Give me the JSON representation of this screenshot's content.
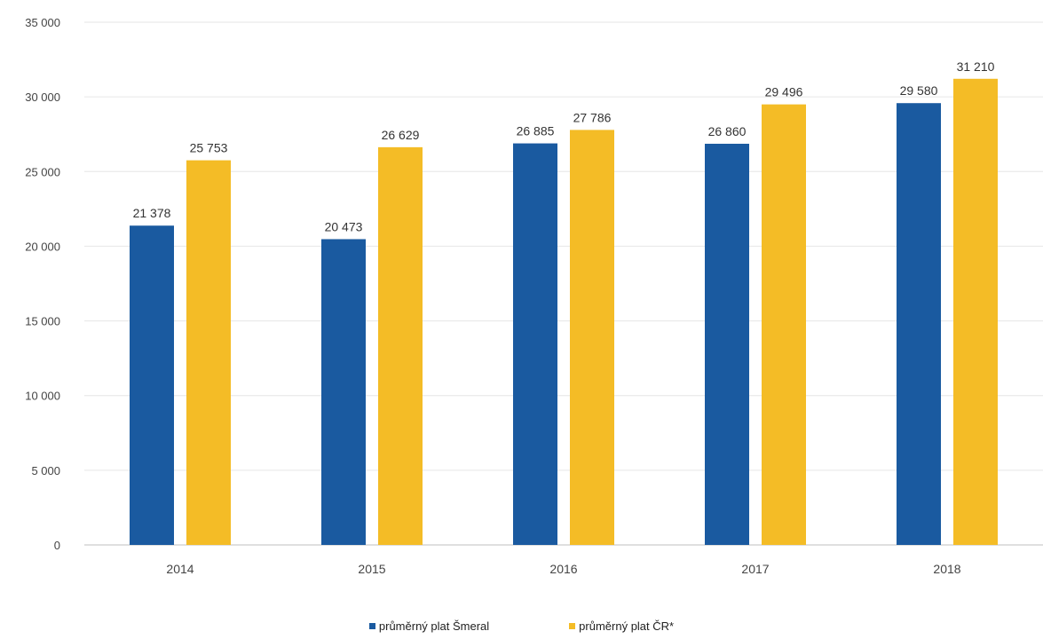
{
  "chart_data": {
    "type": "bar",
    "categories": [
      "2014",
      "2015",
      "2016",
      "2017",
      "2018"
    ],
    "series": [
      {
        "name": "průměrný plat Šmeral",
        "values": [
          21378,
          20473,
          26885,
          26860,
          29580
        ],
        "labels": [
          "21 378",
          "20 473",
          "26 885",
          "26 860",
          "29 580"
        ],
        "color": "#1a5aa0"
      },
      {
        "name": "průměrný plat ČR*",
        "values": [
          25753,
          26629,
          27786,
          29496,
          31210
        ],
        "labels": [
          "25 753",
          "26 629",
          "27 786",
          "29 496",
          "31 210"
        ],
        "color": "#f4bc26"
      }
    ],
    "yticks": [
      {
        "value": 0,
        "label": "0"
      },
      {
        "value": 5000,
        "label": "5 000"
      },
      {
        "value": 10000,
        "label": "10 000"
      },
      {
        "value": 15000,
        "label": "15 000"
      },
      {
        "value": 20000,
        "label": "20 000"
      },
      {
        "value": 25000,
        "label": "25 000"
      },
      {
        "value": 30000,
        "label": "30 000"
      },
      {
        "value": 35000,
        "label": "35 000"
      }
    ],
    "ylim": [
      0,
      35000
    ],
    "grid": true,
    "legend_position": "bottom"
  }
}
